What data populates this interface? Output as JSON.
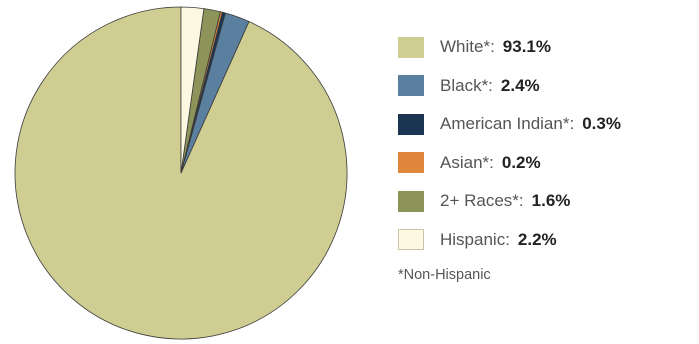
{
  "chart_data": {
    "type": "pie",
    "unit": "%",
    "slices": [
      {
        "label": "White*:",
        "value": 93.1,
        "display": "93.1%",
        "color": "#cfcd92"
      },
      {
        "label": "Black*:",
        "value": 2.4,
        "display": "2.4%",
        "color": "#5a7f9f"
      },
      {
        "label": "American Indian*:",
        "value": 0.3,
        "display": "0.3%",
        "color": "#1c3553"
      },
      {
        "label": "Asian*:",
        "value": 0.2,
        "display": "0.2%",
        "color": "#e0873c"
      },
      {
        "label": "2+ Races*:",
        "value": 1.6,
        "display": "1.6%",
        "color": "#8d9459"
      },
      {
        "label": "Hispanic:",
        "value": 2.2,
        "display": "2.2%",
        "color": "#fdf8e2"
      }
    ],
    "start_angle": "12 o'clock",
    "direction": "counter-clockwise",
    "legend_position": "right",
    "footnote": "*Non-Hispanic"
  }
}
